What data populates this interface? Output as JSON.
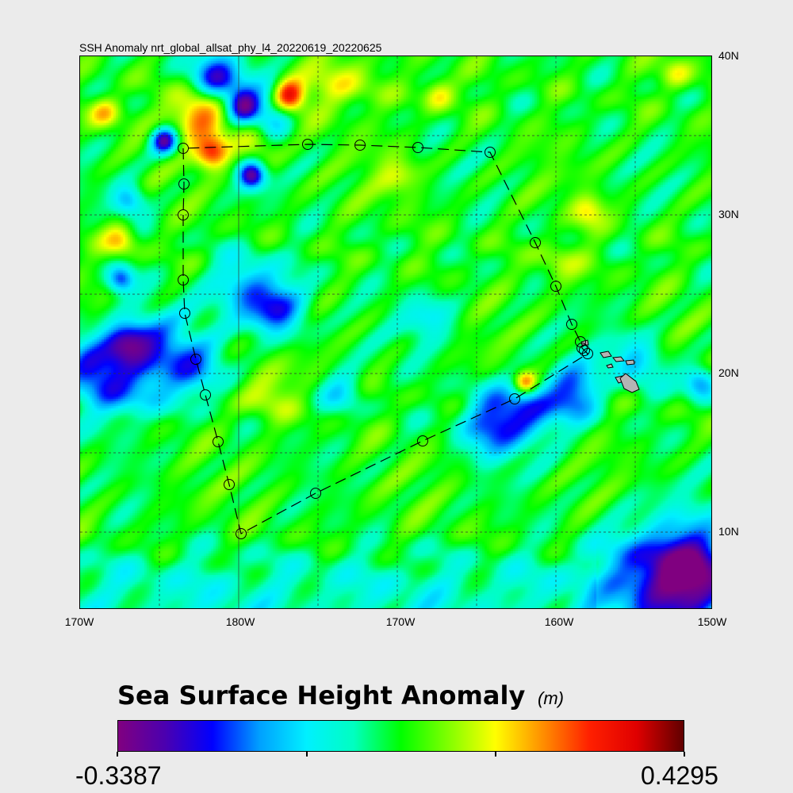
{
  "title": "SSH Anomaly nrt_global_allsat_phy_l4_20220619_20220625",
  "map": {
    "lat_labels": [
      "40N",
      "30N",
      "20N",
      "10N"
    ],
    "lon_labels": [
      "170W",
      "180W",
      "170W",
      "160W",
      "150W"
    ],
    "land_color": "#b4b4b4",
    "track_waypoints_lon_lat": [
      [
        176.5,
        34.2
      ],
      [
        176.55,
        31.95
      ],
      [
        176.5,
        30
      ],
      [
        176.5,
        25.9
      ],
      [
        176.6,
        23.8
      ],
      [
        177.3,
        20.9
      ],
      [
        177.9,
        18.65
      ],
      [
        178.7,
        15.7
      ],
      [
        179.4,
        13
      ],
      [
        180.15,
        9.9
      ],
      [
        184.85,
        12.45
      ],
      [
        191.6,
        15.75
      ],
      [
        197.4,
        18.4
      ],
      [
        202,
        21.25
      ],
      [
        201.8,
        21.45
      ],
      [
        201.65,
        21.6
      ],
      [
        201.55,
        22
      ],
      [
        201,
        23.1
      ],
      [
        200,
        25.5
      ],
      [
        198.7,
        28.25
      ],
      [
        195.85,
        33.95
      ],
      [
        191.3,
        34.25
      ],
      [
        187.65,
        34.4
      ],
      [
        184.35,
        34.45
      ],
      [
        176.5,
        34.2
      ]
    ]
  },
  "colorbar": {
    "title": "Sea Surface Height Anomaly",
    "unit": "(m)",
    "min_label": "-0.3387",
    "max_label": "0.4295",
    "min": -0.3387,
    "max": 0.4295,
    "colormap": [
      "#800080",
      "#4b00b0",
      "#0000ff",
      "#00a0ff",
      "#00f0ff",
      "#00ffc0",
      "#00ff00",
      "#80ff00",
      "#ffff00",
      "#ff9000",
      "#ff2000",
      "#e00000",
      "#600000"
    ]
  }
}
